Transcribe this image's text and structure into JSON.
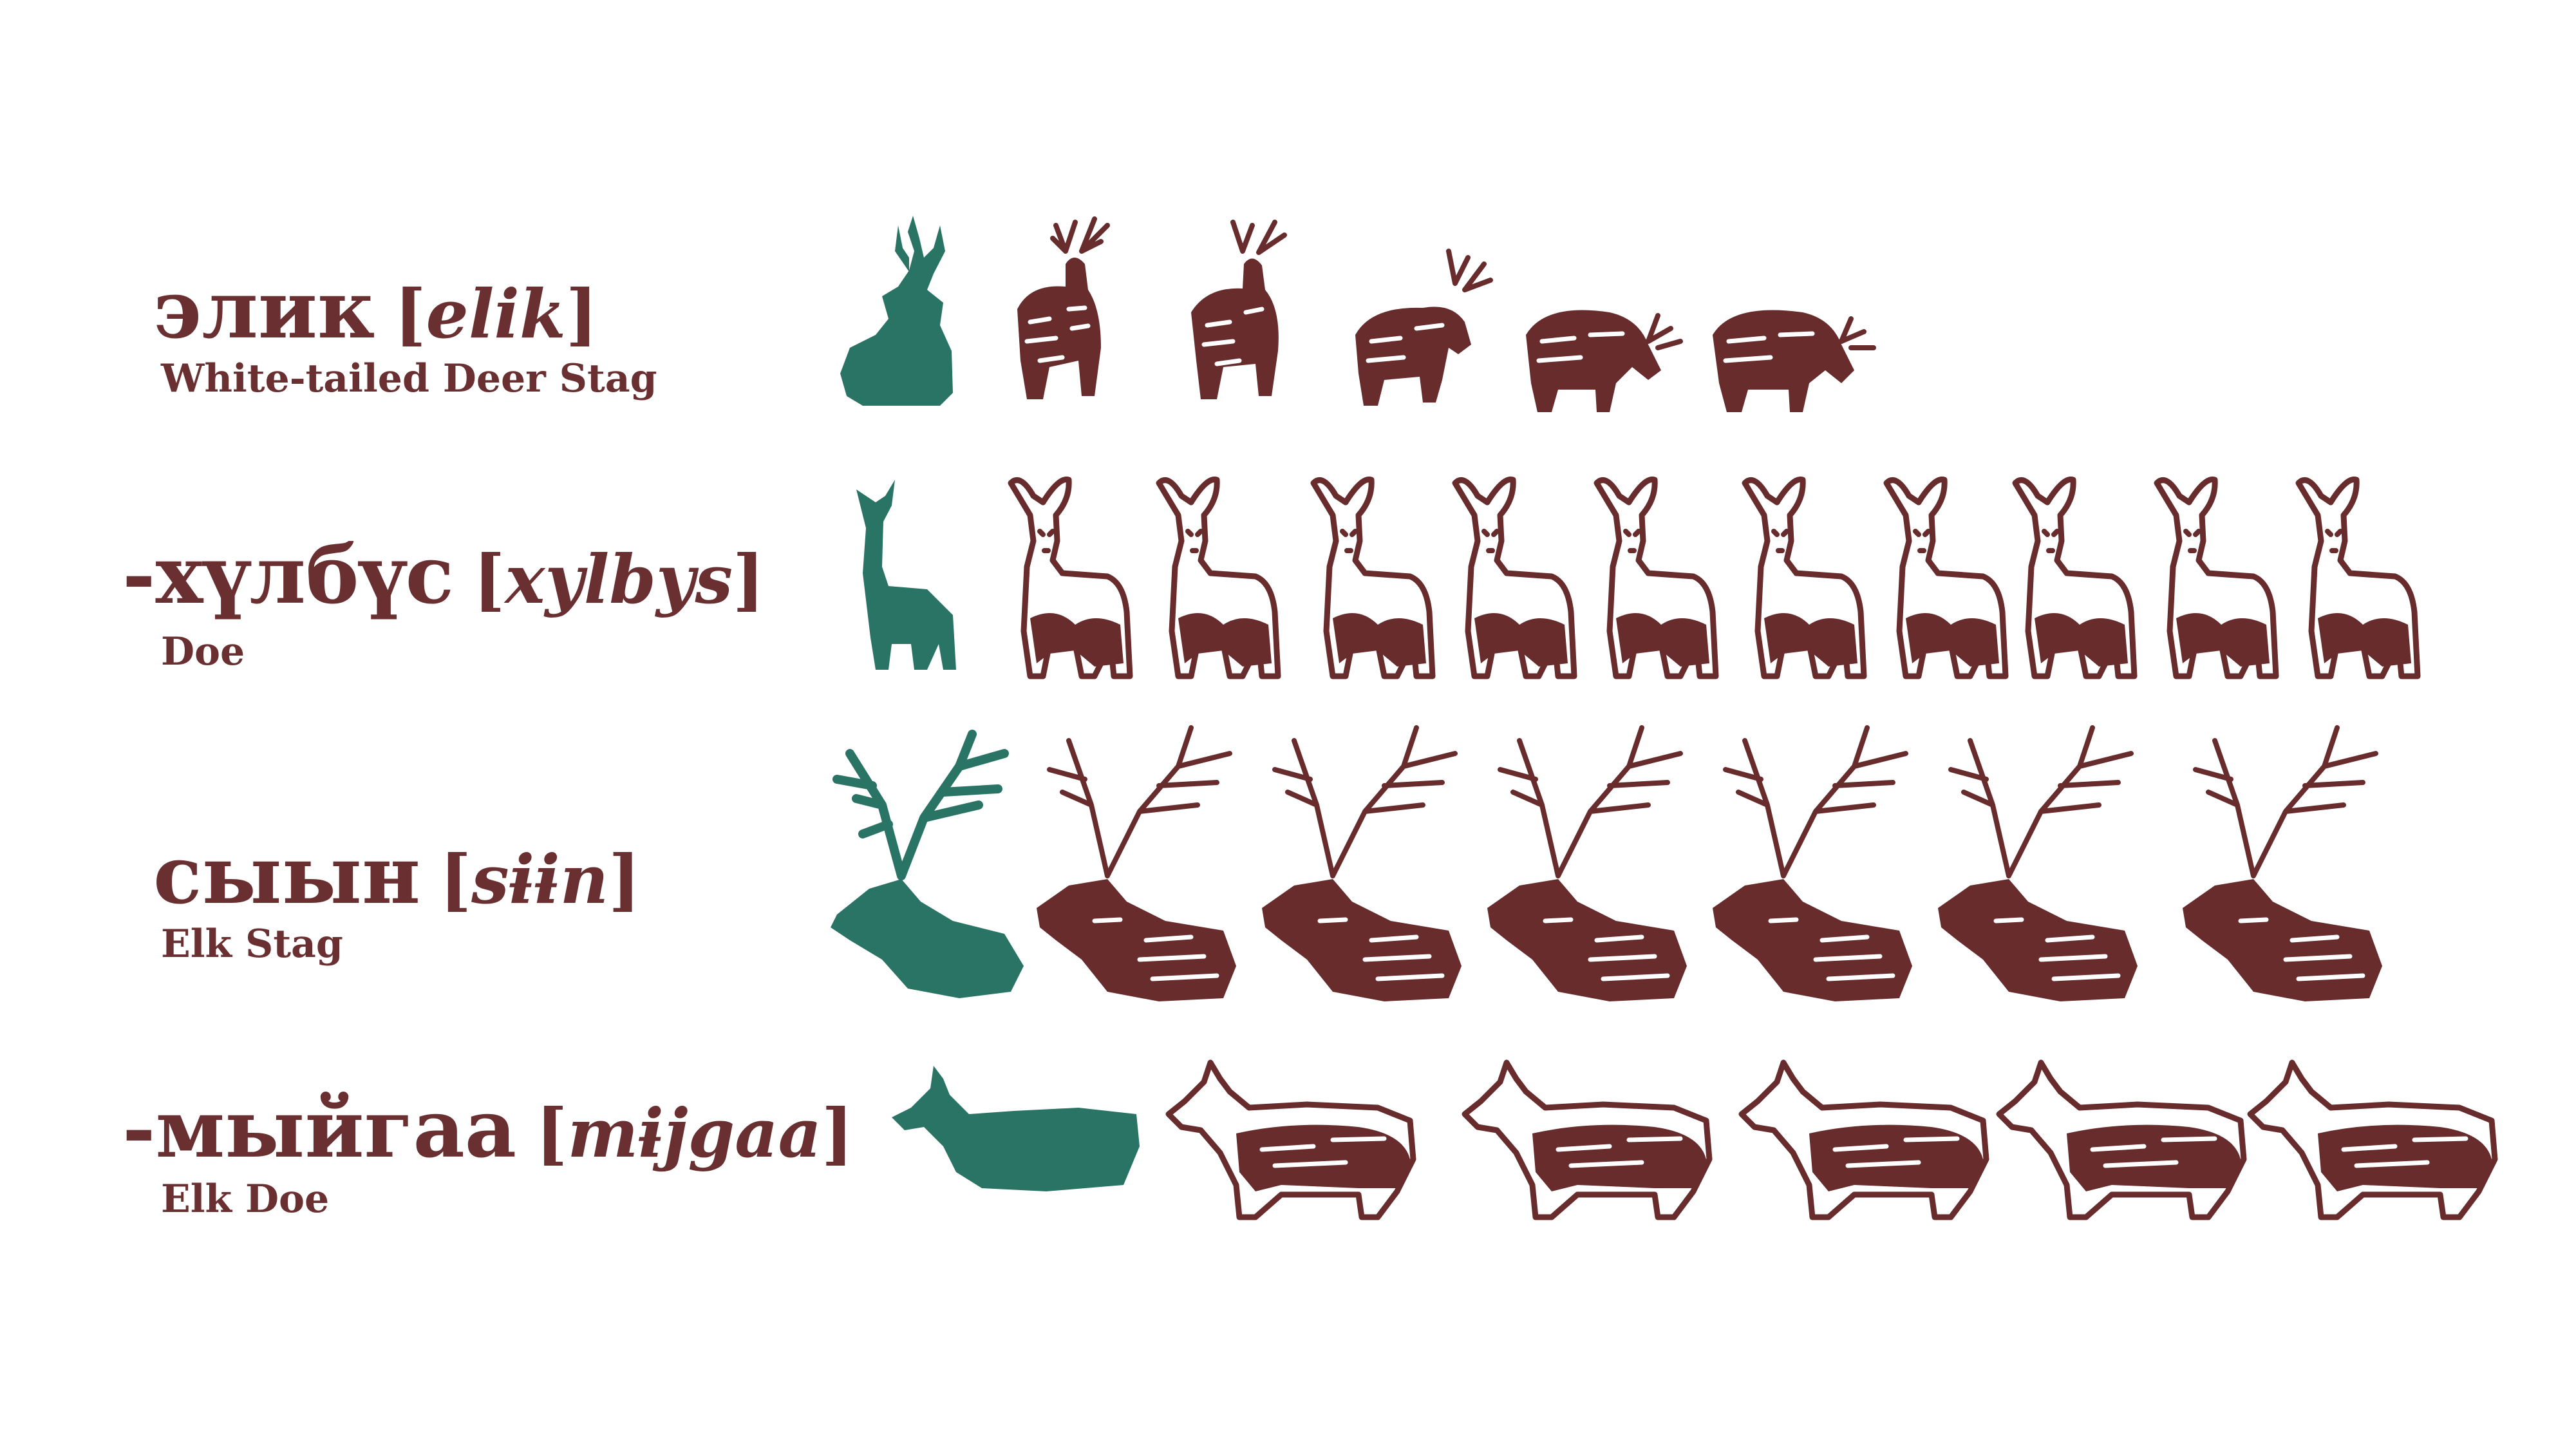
{
  "colors": {
    "text": "#6a2f30",
    "silhouette": "#2a7466",
    "illustration": "#682c2d",
    "background": "#ffffff"
  },
  "rows": [
    {
      "word": "элик",
      "open": "[",
      "transliteration": "elik",
      "close": "]",
      "gloss": "White-tailed Deer Stag",
      "silhouette_icon": "deer-stag-silhouette-icon",
      "illustration_icon": "deer-stag-illustration-icon",
      "illustration_count": 5
    },
    {
      "word": "-хүлбүс",
      "open": "[",
      "transliteration": "xylbys",
      "close": "]",
      "gloss": "Doe",
      "silhouette_icon": "doe-silhouette-icon",
      "illustration_icon": "doe-illustration-icon",
      "illustration_count": 10
    },
    {
      "word": "сыын",
      "open": "[",
      "transliteration": "sɨɨn",
      "close": "]",
      "gloss": "Elk Stag",
      "silhouette_icon": "elk-stag-silhouette-icon",
      "illustration_icon": "elk-stag-illustration-icon",
      "illustration_count": 6
    },
    {
      "word": "-мыйгаа",
      "open": "[",
      "transliteration": "mɨjgaa",
      "close": "]",
      "gloss": "Elk Doe",
      "silhouette_icon": "elk-doe-silhouette-icon",
      "illustration_icon": "elk-doe-illustration-icon",
      "illustration_count": 5
    }
  ]
}
